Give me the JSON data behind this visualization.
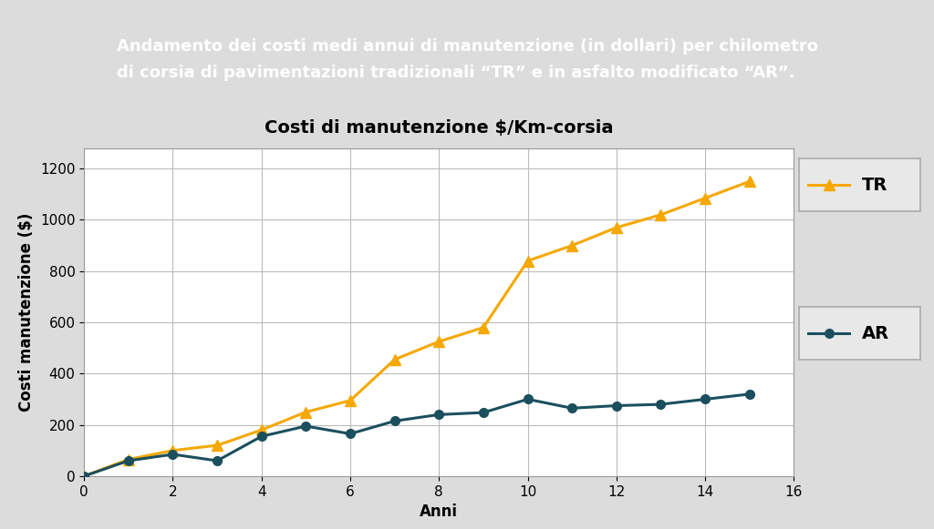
{
  "title_chart": "Costi di manutenzione $/Km-corsia",
  "header_text": "Andamento dei costi medi annui di manutenzione (in dollari) per chilometro\ndi corsia di pavimentazioni tradizionali “TR” e in asfalto modificato “AR”.",
  "xlabel": "Anni",
  "ylabel": "Costi manutenzione ($)",
  "xlim": [
    0,
    16
  ],
  "ylim": [
    0,
    1280
  ],
  "xticks": [
    0,
    2,
    4,
    6,
    8,
    10,
    12,
    14,
    16
  ],
  "yticks": [
    0,
    200,
    400,
    600,
    800,
    1000,
    1200
  ],
  "TR_x": [
    0,
    1,
    2,
    3,
    4,
    5,
    6,
    7,
    8,
    9,
    10,
    11,
    12,
    13,
    14,
    15
  ],
  "TR_y": [
    0,
    65,
    100,
    120,
    180,
    250,
    295,
    455,
    525,
    580,
    840,
    900,
    970,
    1020,
    1085,
    1150
  ],
  "AR_x": [
    0,
    1,
    2,
    3,
    4,
    5,
    6,
    7,
    8,
    9,
    10,
    11,
    12,
    13,
    14,
    15
  ],
  "AR_y": [
    0,
    60,
    85,
    60,
    155,
    195,
    165,
    215,
    240,
    248,
    300,
    265,
    275,
    280,
    300,
    320
  ],
  "TR_color": "#F5A800",
  "AR_color": "#1B4F5E",
  "header_bg": "#2D7A36",
  "header_text_color": "#FFFFFF",
  "plot_bg": "#FFFFFF",
  "outer_bg": "#DCDCDC",
  "grid_color": "#BBBBBB",
  "legend_bg": "#E8E8E8",
  "legend_border": "#AAAAAA",
  "legend_TR": "TR",
  "legend_AR": "AR",
  "title_fontsize": 14,
  "axis_label_fontsize": 12,
  "tick_fontsize": 11,
  "legend_fontsize": 14,
  "header_fontsize": 13
}
